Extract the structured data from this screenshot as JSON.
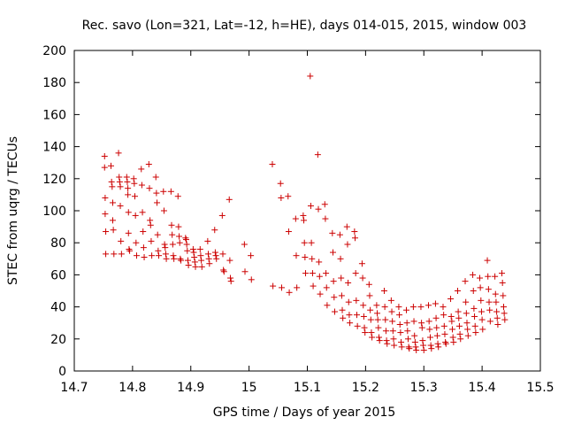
{
  "chart_data": {
    "type": "scatter",
    "title": "Rec. savo (Lon=321, Lat=-12, h=HE), days 014-015, 2015, window 003",
    "xlabel": "GPS time / Days of year 2015",
    "ylabel": "STEC from uqrg / TECUs",
    "xlim": [
      14.7,
      15.5
    ],
    "ylim": [
      0,
      200
    ],
    "xticks": [
      14.7,
      14.8,
      14.9,
      15.0,
      15.1,
      15.2,
      15.3,
      15.4,
      15.5
    ],
    "xtick_labels": [
      "14.7",
      "14.8",
      "14.9",
      "15",
      "15.1",
      "15.2",
      "15.3",
      "15.4",
      "15.5"
    ],
    "yticks": [
      0,
      20,
      40,
      60,
      80,
      100,
      120,
      140,
      160,
      180,
      200
    ],
    "ytick_labels": [
      "0",
      "20",
      "40",
      "60",
      "80",
      "100",
      "120",
      "140",
      "160",
      "180",
      "200"
    ],
    "grid": false,
    "marker": "+",
    "marker_color": "#cc0000",
    "series": [
      {
        "name": "STEC",
        "points": [
          [
            14.752,
            134
          ],
          [
            14.752,
            127
          ],
          [
            14.753,
            108
          ],
          [
            14.753,
            98
          ],
          [
            14.754,
            87
          ],
          [
            14.754,
            73
          ],
          [
            14.763,
            128
          ],
          [
            14.764,
            118
          ],
          [
            14.765,
            115
          ],
          [
            14.766,
            105
          ],
          [
            14.766,
            94
          ],
          [
            14.767,
            88
          ],
          [
            14.768,
            73
          ],
          [
            14.776,
            136
          ],
          [
            14.777,
            121
          ],
          [
            14.778,
            118
          ],
          [
            14.779,
            115
          ],
          [
            14.779,
            103
          ],
          [
            14.78,
            81
          ],
          [
            14.781,
            73
          ],
          [
            14.79,
            121
          ],
          [
            14.791,
            118
          ],
          [
            14.792,
            114
          ],
          [
            14.792,
            110
          ],
          [
            14.793,
            99
          ],
          [
            14.793,
            86
          ],
          [
            14.794,
            76
          ],
          [
            14.795,
            75
          ],
          [
            14.802,
            120
          ],
          [
            14.803,
            117
          ],
          [
            14.804,
            109
          ],
          [
            14.805,
            97
          ],
          [
            14.806,
            80
          ],
          [
            14.807,
            72
          ],
          [
            14.815,
            126
          ],
          [
            14.816,
            116
          ],
          [
            14.817,
            99
          ],
          [
            14.818,
            87
          ],
          [
            14.819,
            77
          ],
          [
            14.82,
            71
          ],
          [
            14.828,
            129
          ],
          [
            14.829,
            114
          ],
          [
            14.83,
            94
          ],
          [
            14.831,
            91
          ],
          [
            14.832,
            81
          ],
          [
            14.833,
            72
          ],
          [
            14.84,
            121
          ],
          [
            14.841,
            111
          ],
          [
            14.842,
            105
          ],
          [
            14.843,
            85
          ],
          [
            14.844,
            75
          ],
          [
            14.845,
            72
          ],
          [
            14.853,
            112
          ],
          [
            14.854,
            100
          ],
          [
            14.855,
            79
          ],
          [
            14.856,
            77
          ],
          [
            14.857,
            73
          ],
          [
            14.858,
            70
          ],
          [
            14.866,
            112
          ],
          [
            14.867,
            91
          ],
          [
            14.868,
            85
          ],
          [
            14.869,
            79
          ],
          [
            14.87,
            72
          ],
          [
            14.871,
            70
          ],
          [
            14.878,
            109
          ],
          [
            14.879,
            90
          ],
          [
            14.88,
            84
          ],
          [
            14.881,
            80
          ],
          [
            14.882,
            70
          ],
          [
            14.883,
            69
          ],
          [
            14.891,
            83
          ],
          [
            14.892,
            82
          ],
          [
            14.893,
            79
          ],
          [
            14.894,
            75
          ],
          [
            14.895,
            69
          ],
          [
            14.896,
            66
          ],
          [
            14.904,
            76
          ],
          [
            14.905,
            74
          ],
          [
            14.906,
            71
          ],
          [
            14.907,
            68
          ],
          [
            14.908,
            65
          ],
          [
            14.916,
            76
          ],
          [
            14.917,
            72
          ],
          [
            14.918,
            69
          ],
          [
            14.919,
            65
          ],
          [
            14.929,
            81
          ],
          [
            14.93,
            73
          ],
          [
            14.931,
            70
          ],
          [
            14.932,
            67
          ],
          [
            14.941,
            88
          ],
          [
            14.942,
            74
          ],
          [
            14.943,
            72
          ],
          [
            14.944,
            70
          ],
          [
            14.954,
            97
          ],
          [
            14.955,
            73
          ],
          [
            14.956,
            63
          ],
          [
            14.957,
            62
          ],
          [
            14.966,
            107
          ],
          [
            14.967,
            69
          ],
          [
            14.968,
            58
          ],
          [
            14.969,
            56
          ],
          [
            14.992,
            79
          ],
          [
            14.993,
            62
          ],
          [
            15.003,
            72
          ],
          [
            15.004,
            57
          ],
          [
            15.04,
            129
          ],
          [
            15.041,
            53
          ],
          [
            15.054,
            117
          ],
          [
            15.055,
            108
          ],
          [
            15.056,
            52
          ],
          [
            15.067,
            109
          ],
          [
            15.068,
            87
          ],
          [
            15.069,
            49
          ],
          [
            15.08,
            95
          ],
          [
            15.081,
            72
          ],
          [
            15.082,
            52
          ],
          [
            15.093,
            97
          ],
          [
            15.094,
            94
          ],
          [
            15.095,
            80
          ],
          [
            15.096,
            71
          ],
          [
            15.097,
            61
          ],
          [
            15.105,
            184
          ],
          [
            15.106,
            103
          ],
          [
            15.107,
            80
          ],
          [
            15.108,
            70
          ],
          [
            15.109,
            61
          ],
          [
            15.11,
            53
          ],
          [
            15.118,
            135
          ],
          [
            15.119,
            101
          ],
          [
            15.12,
            68
          ],
          [
            15.121,
            59
          ],
          [
            15.122,
            48
          ],
          [
            15.13,
            104
          ],
          [
            15.131,
            95
          ],
          [
            15.132,
            61
          ],
          [
            15.133,
            52
          ],
          [
            15.134,
            41
          ],
          [
            15.143,
            86
          ],
          [
            15.144,
            74
          ],
          [
            15.145,
            56
          ],
          [
            15.146,
            46
          ],
          [
            15.147,
            37
          ],
          [
            15.156,
            85
          ],
          [
            15.157,
            70
          ],
          [
            15.158,
            58
          ],
          [
            15.159,
            47
          ],
          [
            15.16,
            38
          ],
          [
            15.161,
            33
          ],
          [
            15.168,
            90
          ],
          [
            15.169,
            79
          ],
          [
            15.17,
            55
          ],
          [
            15.171,
            43
          ],
          [
            15.172,
            35
          ],
          [
            15.173,
            30
          ],
          [
            15.181,
            87
          ],
          [
            15.182,
            83
          ],
          [
            15.183,
            61
          ],
          [
            15.184,
            44
          ],
          [
            15.185,
            35
          ],
          [
            15.186,
            28
          ],
          [
            15.194,
            67
          ],
          [
            15.195,
            58
          ],
          [
            15.196,
            41
          ],
          [
            15.197,
            34
          ],
          [
            15.198,
            27
          ],
          [
            15.199,
            24
          ],
          [
            15.206,
            54
          ],
          [
            15.207,
            47
          ],
          [
            15.208,
            38
          ],
          [
            15.209,
            32
          ],
          [
            15.21,
            24
          ],
          [
            15.211,
            21
          ],
          [
            15.219,
            41
          ],
          [
            15.22,
            36
          ],
          [
            15.221,
            32
          ],
          [
            15.222,
            27
          ],
          [
            15.223,
            21
          ],
          [
            15.224,
            19
          ],
          [
            15.232,
            50
          ],
          [
            15.233,
            40
          ],
          [
            15.234,
            32
          ],
          [
            15.235,
            25
          ],
          [
            15.236,
            19
          ],
          [
            15.237,
            17
          ],
          [
            15.244,
            44
          ],
          [
            15.245,
            37
          ],
          [
            15.246,
            31
          ],
          [
            15.247,
            25
          ],
          [
            15.248,
            20
          ],
          [
            15.249,
            16
          ],
          [
            15.257,
            40
          ],
          [
            15.258,
            35
          ],
          [
            15.259,
            29
          ],
          [
            15.26,
            24
          ],
          [
            15.261,
            18
          ],
          [
            15.262,
            15
          ],
          [
            15.27,
            38
          ],
          [
            15.271,
            30
          ],
          [
            15.272,
            25
          ],
          [
            15.273,
            20
          ],
          [
            15.274,
            15
          ],
          [
            15.275,
            14
          ],
          [
            15.282,
            40
          ],
          [
            15.283,
            31
          ],
          [
            15.284,
            22
          ],
          [
            15.285,
            18
          ],
          [
            15.286,
            15
          ],
          [
            15.287,
            13
          ],
          [
            15.295,
            40
          ],
          [
            15.296,
            30
          ],
          [
            15.297,
            27
          ],
          [
            15.298,
            19
          ],
          [
            15.299,
            16
          ],
          [
            15.3,
            13
          ],
          [
            15.308,
            41
          ],
          [
            15.309,
            31
          ],
          [
            15.31,
            26
          ],
          [
            15.311,
            21
          ],
          [
            15.312,
            16
          ],
          [
            15.313,
            14
          ],
          [
            15.32,
            42
          ],
          [
            15.321,
            33
          ],
          [
            15.322,
            27
          ],
          [
            15.323,
            22
          ],
          [
            15.324,
            17
          ],
          [
            15.325,
            15
          ],
          [
            15.333,
            40
          ],
          [
            15.334,
            35
          ],
          [
            15.335,
            28
          ],
          [
            15.336,
            23
          ],
          [
            15.337,
            18
          ],
          [
            15.338,
            17
          ],
          [
            15.346,
            45
          ],
          [
            15.347,
            34
          ],
          [
            15.348,
            31
          ],
          [
            15.349,
            26
          ],
          [
            15.35,
            21
          ],
          [
            15.351,
            18
          ],
          [
            15.358,
            50
          ],
          [
            15.359,
            37
          ],
          [
            15.36,
            33
          ],
          [
            15.361,
            28
          ],
          [
            15.362,
            23
          ],
          [
            15.363,
            20
          ],
          [
            15.371,
            56
          ],
          [
            15.372,
            43
          ],
          [
            15.373,
            36
          ],
          [
            15.374,
            30
          ],
          [
            15.375,
            26
          ],
          [
            15.376,
            22
          ],
          [
            15.384,
            60
          ],
          [
            15.385,
            50
          ],
          [
            15.386,
            39
          ],
          [
            15.387,
            34
          ],
          [
            15.388,
            28
          ],
          [
            15.389,
            24
          ],
          [
            15.396,
            58
          ],
          [
            15.397,
            52
          ],
          [
            15.398,
            44
          ],
          [
            15.399,
            37
          ],
          [
            15.4,
            32
          ],
          [
            15.401,
            26
          ],
          [
            15.409,
            69
          ],
          [
            15.41,
            59
          ],
          [
            15.411,
            51
          ],
          [
            15.412,
            43
          ],
          [
            15.413,
            38
          ],
          [
            15.414,
            31
          ],
          [
            15.422,
            59
          ],
          [
            15.423,
            48
          ],
          [
            15.424,
            43
          ],
          [
            15.425,
            37
          ],
          [
            15.426,
            33
          ],
          [
            15.427,
            29
          ],
          [
            15.434,
            61
          ],
          [
            15.435,
            55
          ],
          [
            15.436,
            47
          ],
          [
            15.437,
            40
          ],
          [
            15.438,
            36
          ],
          [
            15.439,
            32
          ]
        ]
      }
    ]
  }
}
